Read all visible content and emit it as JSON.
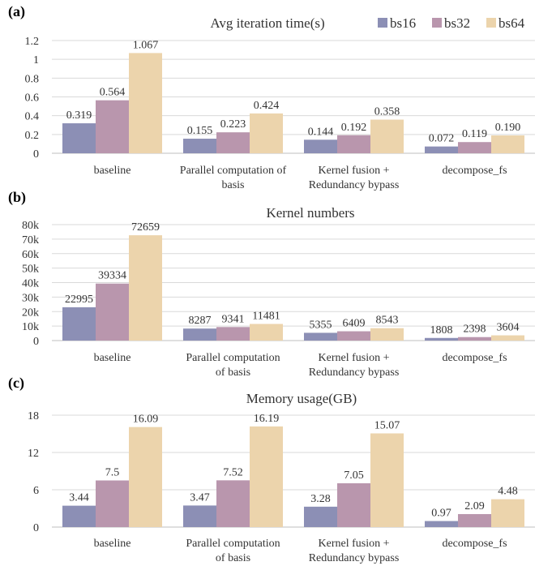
{
  "colors": {
    "bs16": "#8c8fb5",
    "bs32": "#b996ad",
    "bs64": "#ecd4ac"
  },
  "legend": [
    "bs16",
    "bs32",
    "bs64"
  ],
  "chart_data": [
    {
      "panel": "(a)",
      "type": "bar",
      "title": "Avg iteration time(s)",
      "categories": [
        [
          "baseline"
        ],
        [
          "Parallel computation of",
          "basis"
        ],
        [
          "Kernel fusion +",
          "Redundancy bypass"
        ],
        [
          "decompose_fs"
        ]
      ],
      "ylim": [
        0,
        1.2
      ],
      "yticks": [
        "0",
        "0.2",
        "0.4",
        "0.6",
        "0.8",
        "1",
        "1.2"
      ],
      "ytick_values": [
        0,
        0.2,
        0.4,
        0.6,
        0.8,
        1,
        1.2
      ],
      "series": [
        {
          "name": "bs16",
          "values": [
            0.319,
            0.155,
            0.144,
            0.072
          ],
          "labels": [
            "0.319",
            "0.155",
            "0.144",
            "0.072"
          ]
        },
        {
          "name": "bs32",
          "values": [
            0.564,
            0.223,
            0.192,
            0.119
          ],
          "labels": [
            "0.564",
            "0.223",
            "0.192",
            "0.119"
          ]
        },
        {
          "name": "bs64",
          "values": [
            1.067,
            0.424,
            0.358,
            0.19
          ],
          "labels": [
            "1.067",
            "0.424",
            "0.358",
            "0.190"
          ]
        }
      ]
    },
    {
      "panel": "(b)",
      "type": "bar",
      "title": "Kernel numbers",
      "categories": [
        [
          "baseline"
        ],
        [
          "Parallel computation",
          "of basis"
        ],
        [
          "Kernel fusion +",
          "Redundancy bypass"
        ],
        [
          "decompose_fs"
        ]
      ],
      "ylim": [
        0,
        80000
      ],
      "yticks": [
        "0",
        "10k",
        "20k",
        "30k",
        "40k",
        "50k",
        "60k",
        "70k",
        "80k"
      ],
      "ytick_values": [
        0,
        10000,
        20000,
        30000,
        40000,
        50000,
        60000,
        70000,
        80000
      ],
      "series": [
        {
          "name": "bs16",
          "values": [
            22995,
            8287,
            5355,
            1808
          ],
          "labels": [
            "22995",
            "8287",
            "5355",
            "1808"
          ]
        },
        {
          "name": "bs32",
          "values": [
            39334,
            9341,
            6409,
            2398
          ],
          "labels": [
            "39334",
            "9341",
            "6409",
            "2398"
          ]
        },
        {
          "name": "bs64",
          "values": [
            72659,
            11481,
            8543,
            3604
          ],
          "labels": [
            "72659",
            "11481",
            "8543",
            "3604"
          ]
        }
      ]
    },
    {
      "panel": "(c)",
      "type": "bar",
      "title": "Memory usage(GB)",
      "categories": [
        [
          "baseline"
        ],
        [
          "Parallel computation",
          "of basis"
        ],
        [
          "Kernel fusion +",
          "Redundancy bypass"
        ],
        [
          "decompose_fs"
        ]
      ],
      "ylim": [
        0,
        18
      ],
      "yticks": [
        "0",
        "6",
        "12",
        "18"
      ],
      "ytick_values": [
        0,
        6,
        12,
        18
      ],
      "series": [
        {
          "name": "bs16",
          "values": [
            3.44,
            3.47,
            3.28,
            0.97
          ],
          "labels": [
            "3.44",
            "3.47",
            "3.28",
            "0.97"
          ]
        },
        {
          "name": "bs32",
          "values": [
            7.5,
            7.52,
            7.05,
            2.09
          ],
          "labels": [
            "7.5",
            "7.52",
            "7.05",
            "2.09"
          ]
        },
        {
          "name": "bs64",
          "values": [
            16.09,
            16.19,
            15.07,
            4.48
          ],
          "labels": [
            "16.09",
            "16.19",
            "15.07",
            "4.48"
          ]
        }
      ]
    }
  ]
}
